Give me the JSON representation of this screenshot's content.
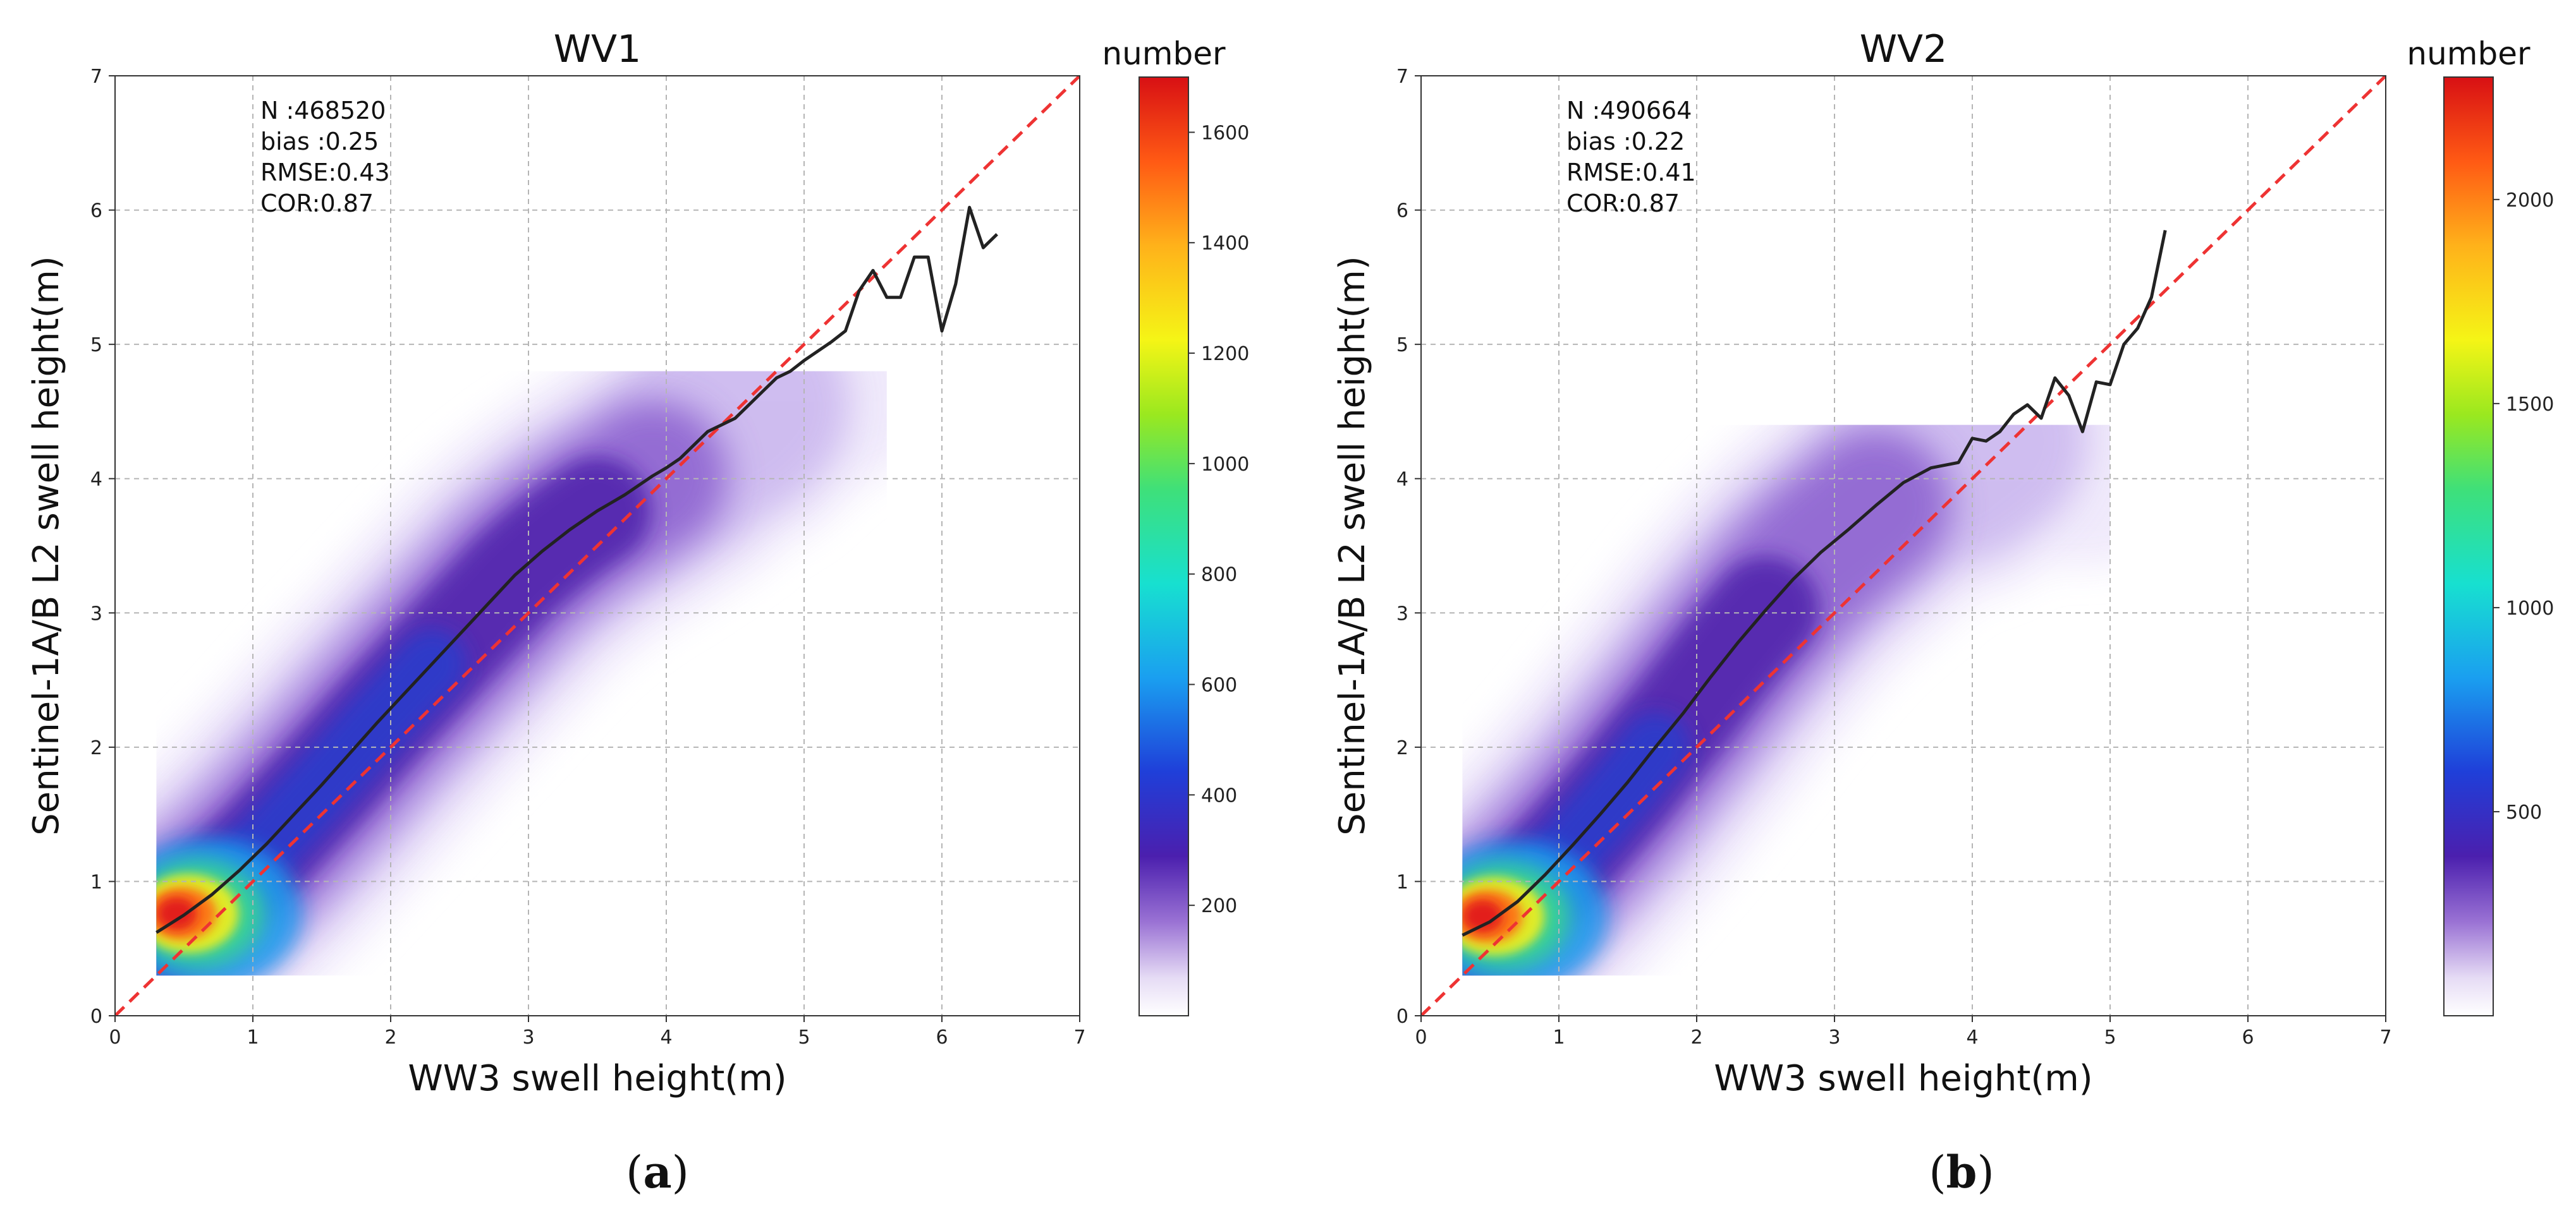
{
  "chart_data": [
    {
      "type": "scatter",
      "panel_label": {
        "open": "(",
        "letter": "a",
        "close": ")"
      },
      "title": "WV1",
      "xlabel": "WW3 swell height(m)",
      "ylabel": "Sentinel-1A/B L2 swell height(m)",
      "xlim": [
        0,
        7
      ],
      "ylim": [
        0,
        7
      ],
      "xticks": [
        "0",
        "1",
        "2",
        "3",
        "4",
        "5",
        "6",
        "7"
      ],
      "yticks": [
        "0",
        "1",
        "2",
        "3",
        "4",
        "5",
        "6",
        "7"
      ],
      "grid": true,
      "stats": [
        "N :468520",
        "bias :0.25",
        "RMSE:0.43",
        "COR:0.87"
      ],
      "density": {
        "colormap": "jet-like",
        "density_extent": {
          "x": [
            0.3,
            5.6
          ],
          "y": [
            0.3,
            4.8
          ]
        }
      },
      "colorbar": {
        "label": "number",
        "range": [
          0,
          1700
        ],
        "ticks": [
          "200",
          "400",
          "600",
          "800",
          "1000",
          "1200",
          "1400",
          "1600"
        ],
        "tick_values": [
          200,
          400,
          600,
          800,
          1000,
          1200,
          1400,
          1600
        ]
      },
      "series": [
        {
          "name": "mean S1 swell height",
          "color": "#222222",
          "x": [
            0.3,
            0.5,
            0.7,
            0.9,
            1.1,
            1.3,
            1.5,
            1.7,
            1.9,
            2.1,
            2.3,
            2.5,
            2.7,
            2.9,
            3.1,
            3.3,
            3.5,
            3.6,
            3.7,
            3.8,
            3.9,
            4.0,
            4.1,
            4.2,
            4.3,
            4.4,
            4.5,
            4.6,
            4.7,
            4.8,
            4.9,
            5.0,
            5.1,
            5.2,
            5.3,
            5.4,
            5.5,
            5.6,
            5.7,
            5.8,
            5.9,
            6.0,
            6.1,
            6.2,
            6.3,
            6.4
          ],
          "y": [
            0.62,
            0.75,
            0.9,
            1.08,
            1.28,
            1.5,
            1.72,
            1.95,
            2.18,
            2.4,
            2.62,
            2.84,
            3.06,
            3.28,
            3.46,
            3.62,
            3.76,
            3.82,
            3.88,
            3.95,
            4.02,
            4.08,
            4.15,
            4.25,
            4.35,
            4.4,
            4.45,
            4.55,
            4.65,
            4.75,
            4.8,
            4.88,
            4.95,
            5.02,
            5.1,
            5.4,
            5.55,
            5.35,
            5.35,
            5.65,
            5.65,
            5.1,
            5.45,
            6.02,
            5.72,
            5.82
          ]
        },
        {
          "name": "1:1 line",
          "style": "dashed",
          "color": "#ee3333",
          "x": [
            0,
            7
          ],
          "y": [
            0,
            7
          ]
        }
      ]
    },
    {
      "type": "scatter",
      "panel_label": {
        "open": "(",
        "letter": "b",
        "close": ")"
      },
      "title": "WV2",
      "xlabel": "WW3 swell height(m)",
      "ylabel": "Sentinel-1A/B L2 swell height(m)",
      "xlim": [
        0,
        7
      ],
      "ylim": [
        0,
        7
      ],
      "xticks": [
        "0",
        "1",
        "2",
        "3",
        "4",
        "5",
        "6",
        "7"
      ],
      "yticks": [
        "0",
        "1",
        "2",
        "3",
        "4",
        "5",
        "6",
        "7"
      ],
      "grid": true,
      "stats": [
        "N :490664",
        "bias :0.22",
        "RMSE:0.41",
        "COR:0.87"
      ],
      "density": {
        "colormap": "jet-like",
        "density_extent": {
          "x": [
            0.3,
            5.0
          ],
          "y": [
            0.3,
            4.4
          ]
        }
      },
      "colorbar": {
        "label": "number",
        "range": [
          0,
          2300
        ],
        "ticks": [
          "500",
          "1000",
          "1500",
          "2000"
        ],
        "tick_values": [
          500,
          1000,
          1500,
          2000
        ]
      },
      "series": [
        {
          "name": "mean S1 swell height",
          "color": "#222222",
          "x": [
            0.3,
            0.5,
            0.7,
            0.9,
            1.1,
            1.3,
            1.5,
            1.7,
            1.9,
            2.1,
            2.3,
            2.5,
            2.7,
            2.9,
            3.1,
            3.3,
            3.5,
            3.7,
            3.9,
            4.0,
            4.1,
            4.2,
            4.3,
            4.4,
            4.5,
            4.6,
            4.7,
            4.8,
            4.9,
            5.0,
            5.1,
            5.2,
            5.3,
            5.4
          ],
          "y": [
            0.6,
            0.7,
            0.85,
            1.05,
            1.27,
            1.5,
            1.74,
            2.0,
            2.25,
            2.52,
            2.78,
            3.02,
            3.25,
            3.45,
            3.62,
            3.8,
            3.97,
            4.08,
            4.12,
            4.3,
            4.28,
            4.35,
            4.48,
            4.55,
            4.45,
            4.75,
            4.62,
            4.35,
            4.72,
            4.7,
            5.0,
            5.12,
            5.35,
            5.85
          ]
        },
        {
          "name": "1:1 line",
          "style": "dashed",
          "color": "#ee3333",
          "x": [
            0,
            7
          ],
          "y": [
            0,
            7
          ]
        }
      ]
    }
  ]
}
